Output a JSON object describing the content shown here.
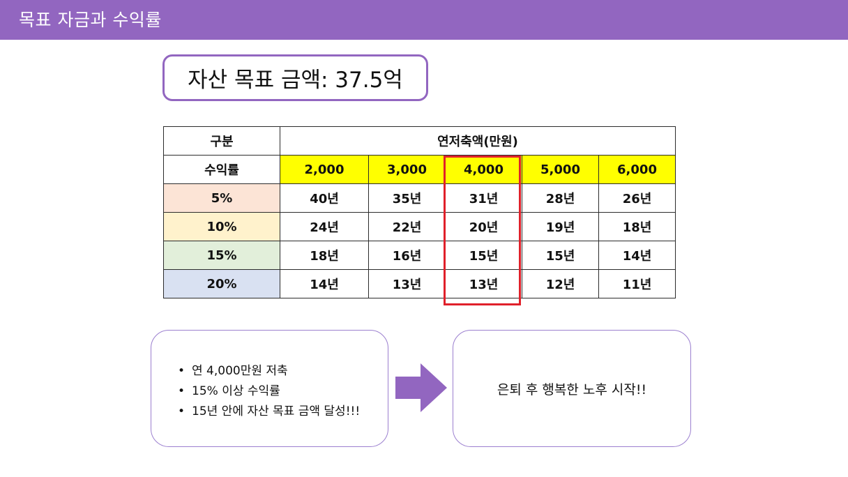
{
  "header": {
    "title": "목표 자금과 수익률"
  },
  "goal": {
    "text": "자산 목표 금액: 37.5억"
  },
  "table": {
    "header_label": "구분",
    "header_group": "연저축액(만원)",
    "rate_label": "수익률",
    "amounts": [
      "2,000",
      "3,000",
      "4,000",
      "5,000",
      "6,000"
    ],
    "rows": [
      {
        "rate": "5%",
        "years": [
          "40년",
          "35년",
          "31년",
          "28년",
          "26년"
        ]
      },
      {
        "rate": "10%",
        "years": [
          "24년",
          "22년",
          "20년",
          "19년",
          "18년"
        ]
      },
      {
        "rate": "15%",
        "years": [
          "18년",
          "16년",
          "15년",
          "15년",
          "14년"
        ]
      },
      {
        "rate": "20%",
        "years": [
          "14년",
          "13년",
          "13년",
          "12년",
          "11년"
        ]
      }
    ],
    "highlighted_amount": "4,000"
  },
  "notes": {
    "items": [
      "연 4,000만원 저축",
      "15% 이상 수익률",
      "15년 안에 자산 목표 금액 달성!!!"
    ]
  },
  "result": {
    "text": "은퇴 후 행복한 노후 시작!!"
  },
  "colors": {
    "accent": "#9266c0",
    "highlight": "#e0202a",
    "amount_fill": "#ffff00",
    "rate_5": "#fce4d6",
    "rate_10": "#fff2cc",
    "rate_15": "#e2efda",
    "rate_20": "#d9e1f2"
  },
  "icons": {
    "arrow": "arrow-right-icon"
  }
}
